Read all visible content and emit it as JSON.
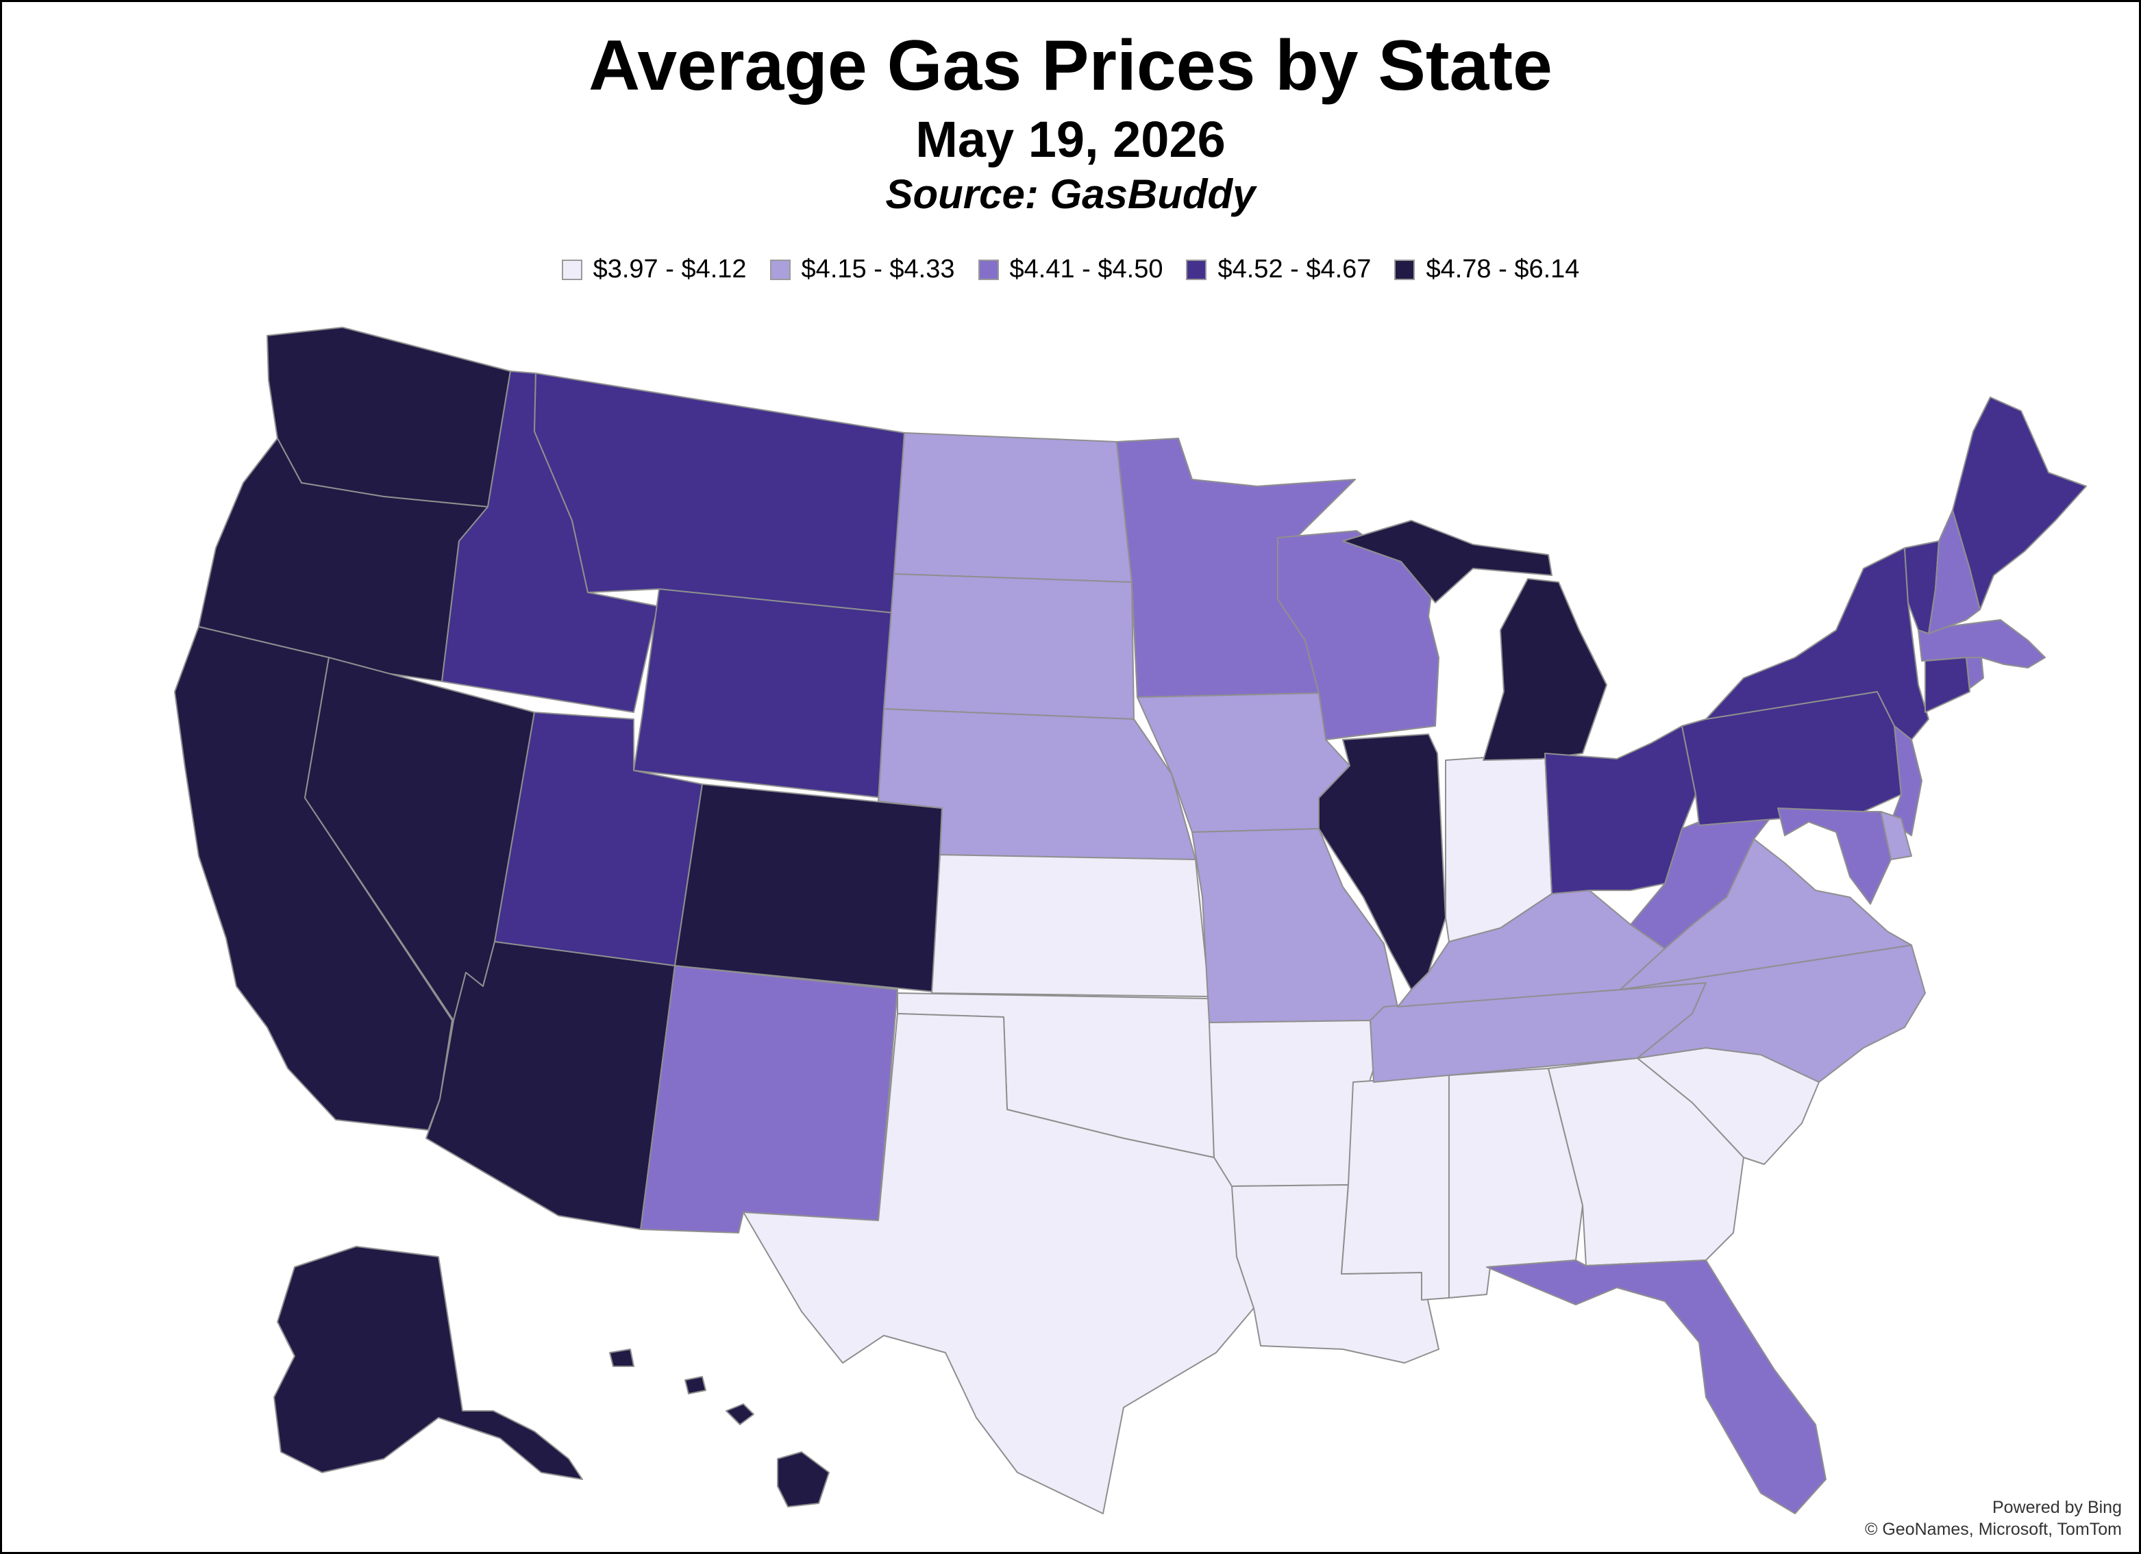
{
  "header": {
    "title": "Average Gas Prices by State",
    "date": "May 19, 2026",
    "source": "Source: GasBuddy"
  },
  "legend": [
    {
      "label": "$3.97 - $4.12",
      "color": "#efedf9"
    },
    {
      "label": "$4.15 - $4.33",
      "color": "#ab9fdc"
    },
    {
      "label": "$4.41 - $4.50",
      "color": "#8570c9"
    },
    {
      "label": "$4.52 - $4.67",
      "color": "#43318d"
    },
    {
      "label": "$4.78 - $6.14",
      "color": "#211a45"
    }
  ],
  "map": {
    "type": "choropleth",
    "states": [
      {
        "code": "WA",
        "bin": 4
      },
      {
        "code": "OR",
        "bin": 4
      },
      {
        "code": "CA",
        "bin": 4
      },
      {
        "code": "NV",
        "bin": 4
      },
      {
        "code": "AZ",
        "bin": 4
      },
      {
        "code": "CO",
        "bin": 4
      },
      {
        "code": "IL",
        "bin": 4
      },
      {
        "code": "MI",
        "bin": 4
      },
      {
        "code": "AK",
        "bin": 4
      },
      {
        "code": "HI",
        "bin": 4
      },
      {
        "code": "ID",
        "bin": 3
      },
      {
        "code": "MT",
        "bin": 3
      },
      {
        "code": "WY",
        "bin": 3
      },
      {
        "code": "UT",
        "bin": 3
      },
      {
        "code": "OH",
        "bin": 3
      },
      {
        "code": "PA",
        "bin": 3
      },
      {
        "code": "NY",
        "bin": 3
      },
      {
        "code": "VT",
        "bin": 3
      },
      {
        "code": "ME",
        "bin": 3
      },
      {
        "code": "CT",
        "bin": 3
      },
      {
        "code": "NM",
        "bin": 2
      },
      {
        "code": "MN",
        "bin": 2
      },
      {
        "code": "WI",
        "bin": 2
      },
      {
        "code": "WV",
        "bin": 2
      },
      {
        "code": "FL",
        "bin": 2
      },
      {
        "code": "NH",
        "bin": 2
      },
      {
        "code": "MA",
        "bin": 2
      },
      {
        "code": "MD",
        "bin": 2
      },
      {
        "code": "NJ",
        "bin": 2
      },
      {
        "code": "RI",
        "bin": 2
      },
      {
        "code": "ND",
        "bin": 1
      },
      {
        "code": "SD",
        "bin": 1
      },
      {
        "code": "NE",
        "bin": 1
      },
      {
        "code": "IA",
        "bin": 1
      },
      {
        "code": "MO",
        "bin": 1
      },
      {
        "code": "KY",
        "bin": 1
      },
      {
        "code": "TN",
        "bin": 1
      },
      {
        "code": "VA",
        "bin": 1
      },
      {
        "code": "NC",
        "bin": 1
      },
      {
        "code": "DE",
        "bin": 1
      },
      {
        "code": "TX",
        "bin": 0
      },
      {
        "code": "OK",
        "bin": 0
      },
      {
        "code": "KS",
        "bin": 0
      },
      {
        "code": "AR",
        "bin": 0
      },
      {
        "code": "LA",
        "bin": 0
      },
      {
        "code": "MS",
        "bin": 0
      },
      {
        "code": "AL",
        "bin": 0
      },
      {
        "code": "GA",
        "bin": 0
      },
      {
        "code": "SC",
        "bin": 0
      },
      {
        "code": "IN",
        "bin": 0
      }
    ]
  },
  "attribution": {
    "line1": "Powered by Bing",
    "line2": "© GeoNames, Microsoft, TomTom"
  }
}
